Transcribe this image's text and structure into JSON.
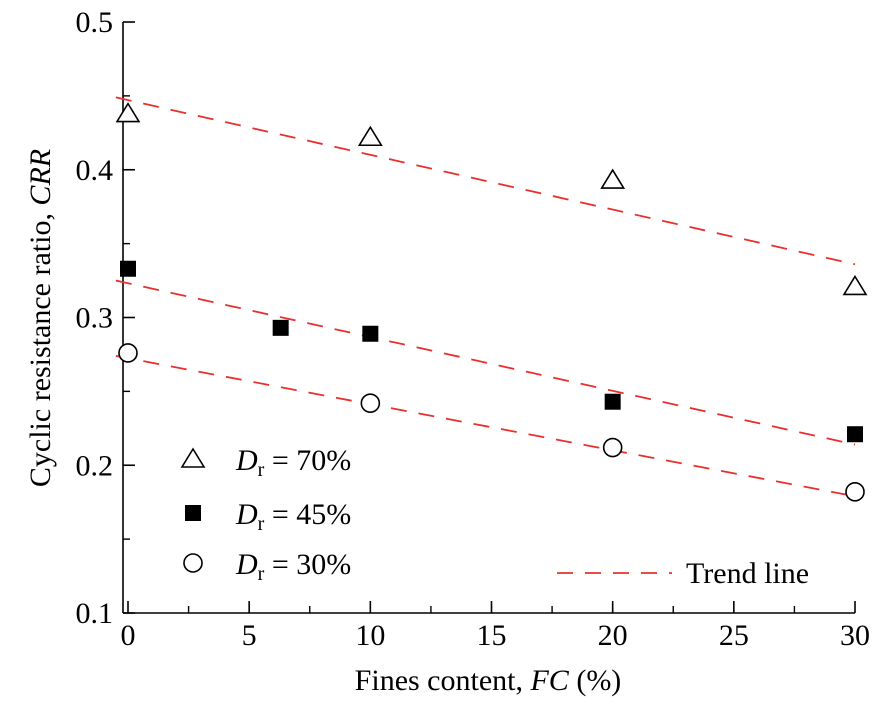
{
  "chart_data": {
    "type": "scatter",
    "title": "",
    "xlabel": {
      "main": "Fines content, ",
      "italic": "FC",
      "suffix": " (%)"
    },
    "ylabel": {
      "main": "Cyclic resistance ratio, ",
      "italic": "CRR"
    },
    "xlim": [
      -0.5,
      30
    ],
    "ylim": [
      0.1,
      0.5
    ],
    "xticks": [
      0,
      5,
      10,
      15,
      20,
      25,
      30
    ],
    "xtick_labels": [
      "0",
      "5",
      "10",
      "15",
      "20",
      "25",
      "30"
    ],
    "yticks": [
      0.1,
      0.2,
      0.3,
      0.4,
      0.5
    ],
    "ytick_labels": [
      "0.1",
      "0.2",
      "0.3",
      "0.4",
      "0.5"
    ],
    "series": [
      {
        "name": "Dr = 70%",
        "label_var": "D",
        "label_sub": "r",
        "label_value": " = 70%",
        "marker": "triangle-open",
        "x": [
          0,
          10,
          20,
          30
        ],
        "y": [
          0.438,
          0.422,
          0.393,
          0.321
        ]
      },
      {
        "name": "Dr = 45%",
        "label_var": "D",
        "label_sub": "r",
        "label_value": " = 45%",
        "marker": "square-filled",
        "x": [
          0,
          6.3,
          10,
          20,
          30
        ],
        "y": [
          0.333,
          0.293,
          0.289,
          0.243,
          0.221
        ]
      },
      {
        "name": "Dr = 30%",
        "label_var": "D",
        "label_sub": "r",
        "label_value": " = 30%",
        "marker": "circle-open",
        "x": [
          0,
          10,
          20,
          30
        ],
        "y": [
          0.276,
          0.242,
          0.212,
          0.182
        ]
      }
    ],
    "trend_lines": [
      {
        "series": "Dr = 70%",
        "x": [
          -0.5,
          30
        ],
        "y": [
          0.449,
          0.336
        ]
      },
      {
        "series": "Dr = 45%",
        "x": [
          -0.5,
          30
        ],
        "y": [
          0.325,
          0.214
        ]
      },
      {
        "series": "Dr = 30%",
        "x": [
          -0.5,
          30
        ],
        "y": [
          0.274,
          0.179
        ]
      }
    ],
    "trend_label": "Trend line",
    "trend_color": "#e8302e",
    "marker_color": "#000000",
    "legend_position": "lower-left",
    "trend_legend_position": "lower-right",
    "grid": false
  }
}
